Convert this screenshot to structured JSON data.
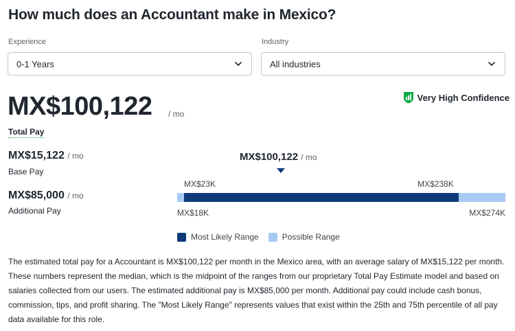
{
  "title": "How much does an Accountant make in Mexico?",
  "filters": {
    "experience": {
      "label": "Experience",
      "value": "0-1 Years"
    },
    "industry": {
      "label": "Industry",
      "value": "All industries"
    }
  },
  "total_pay": {
    "amount": "MX$100,122",
    "per": "/ mo",
    "label": "Total Pay"
  },
  "confidence": {
    "label": "Very High Confidence",
    "color": "#0caa41"
  },
  "base_pay": {
    "amount": "MX$15,122",
    "per": "/ mo",
    "label": "Base Pay"
  },
  "additional_pay": {
    "amount": "MX$85,000",
    "per": "/ mo",
    "label": "Additional Pay"
  },
  "range": {
    "median": "MX$100,122",
    "median_per": "/ mo",
    "likely_low": "MX$23K",
    "likely_high": "MX$238K",
    "possible_low": "MX$18K",
    "possible_high": "MX$274K",
    "likely_color": "#0d3b7a",
    "possible_color": "#a9c9f5"
  },
  "legend": {
    "likely": "Most Likely Range",
    "possible": "Possible Range"
  },
  "description": "The estimated total pay for a Accountant is MX$100,122 per month in the Mexico area, with an average salary of MX$15,122 per month. These numbers represent the median, which is the midpoint of the ranges from our proprietary Total Pay Estimate model and based on salaries collected from our users. The estimated additional pay is MX$85,000 per month. Additional pay could include cash bonus, commission, tips, and profit sharing. The \"Most Likely Range\" represents values that exist within the 25th and 75th percentile of all pay data available for this role."
}
